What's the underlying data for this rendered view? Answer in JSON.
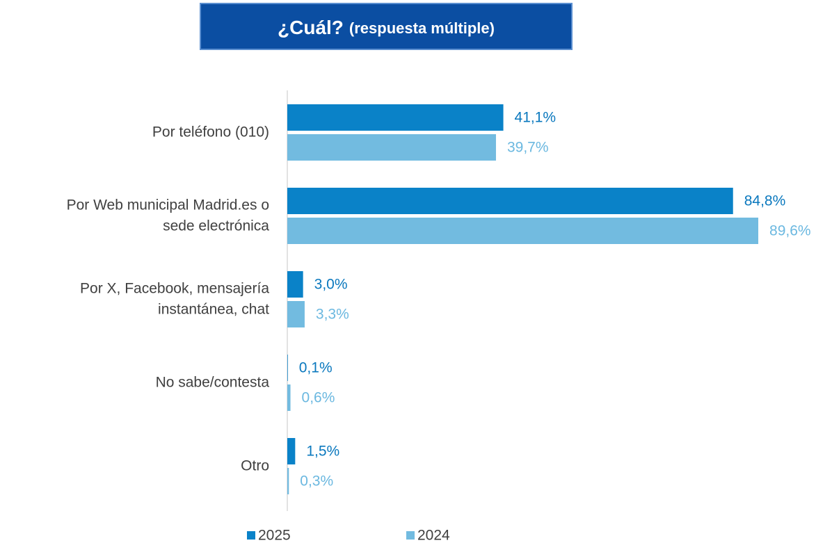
{
  "chart_data": {
    "type": "bar",
    "orientation": "horizontal",
    "title": "¿Cuál?",
    "subtitle": "(respuesta múltiple)",
    "categories": [
      "Por teléfono (010)",
      "Por Web municipal Madrid.es o\nsede electrónica",
      "Por X, Facebook, mensajería\ninstantánea, chat",
      "No sabe/contesta",
      "Otro"
    ],
    "series": [
      {
        "name": "2025",
        "color": "#0a82c8",
        "values": [
          41.1,
          84.8,
          3.0,
          0.1,
          1.5
        ],
        "value_labels": [
          "41,1%",
          "84,8%",
          "3,0%",
          "0,1%",
          "1,5%"
        ]
      },
      {
        "name": "2024",
        "color": "#72bbe0",
        "values": [
          39.7,
          89.6,
          3.3,
          0.6,
          0.3
        ],
        "value_labels": [
          "39,7%",
          "89,6%",
          "3,3%",
          "0,6%",
          "0,3%"
        ]
      }
    ]
  }
}
